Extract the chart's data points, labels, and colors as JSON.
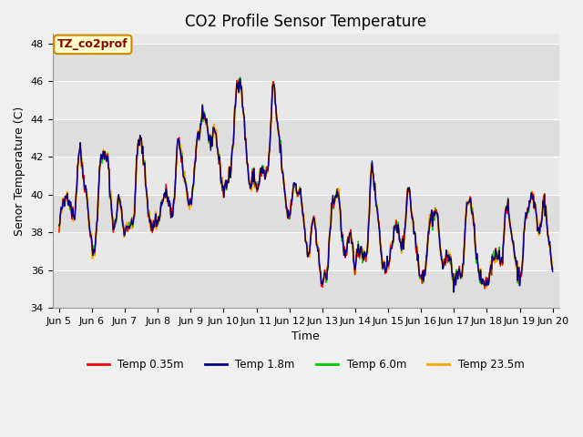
{
  "title": "CO2 Profile Sensor Temperature",
  "ylabel": "Senor Temperature (C)",
  "xlabel": "Time",
  "annotation_text": "TZ_co2prof",
  "annotation_color": "#8b0000",
  "annotation_bg": "#ffffcc",
  "annotation_border": "#cc8800",
  "ylim": [
    34,
    48.5
  ],
  "yticks": [
    34,
    36,
    38,
    40,
    42,
    44,
    46,
    48
  ],
  "series_colors": [
    "#ff0000",
    "#00008b",
    "#00cc00",
    "#ffa500"
  ],
  "series_labels": [
    "Temp 0.35m",
    "Temp 1.8m",
    "Temp 6.0m",
    "Temp 23.5m"
  ],
  "series_linewidths": [
    1.0,
    1.0,
    1.0,
    1.5
  ],
  "series_zorders": [
    4,
    5,
    3,
    2
  ],
  "bg_color": "#f0f0f0",
  "plot_bg_color": "#e8e8e8",
  "grid_color": "#ffffff",
  "xtick_labels": [
    "Jun 5",
    "Jun 6",
    "Jun 7",
    "Jun 8",
    "Jun 9",
    "Jun 10",
    "Jun 11",
    "Jun 12",
    "Jun 13",
    "Jun 14",
    "Jun 15",
    "Jun 16",
    "Jun 17",
    "Jun 18",
    "Jun 19",
    "Jun 20"
  ],
  "days": 15,
  "pts_per_day": 48,
  "title_fontsize": 12,
  "label_fontsize": 9,
  "tick_fontsize": 8
}
